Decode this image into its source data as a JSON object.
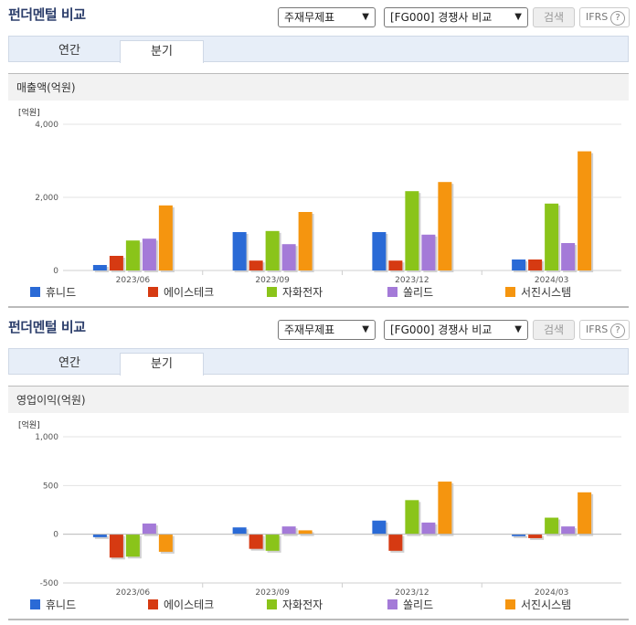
{
  "panels": [
    {
      "title": "펀더멘털 비교",
      "select1": "주재무제표",
      "select2": "[FG000] 경쟁사 비교",
      "search_label": "검색",
      "ifrs_label": "IFRS",
      "tabs": [
        "연간",
        "분기"
      ],
      "active_tab": "분기",
      "section_title": "매출액(억원)"
    },
    {
      "title": "펀더멘털 비교",
      "select1": "주재무제표",
      "select2": "[FG000] 경쟁사 비교",
      "search_label": "검색",
      "ifrs_label": "IFRS",
      "tabs": [
        "연간",
        "분기"
      ],
      "active_tab": "분기",
      "section_title": "영업이익(억원)"
    }
  ],
  "colors": {
    "휴니드": "#2a6ad6",
    "에이스테크": "#d63a12",
    "자화전자": "#8ac41a",
    "쏠리드": "#a47ad8",
    "서진시스템": "#f5950f"
  },
  "chart_data": [
    {
      "type": "bar",
      "unit_label": "[억원]",
      "categories": [
        "2023/06",
        "2023/09",
        "2023/12",
        "2024/03"
      ],
      "ylim": [
        0,
        4000
      ],
      "yticks": [
        0,
        2000,
        4000
      ],
      "ytick_labels": [
        "0",
        "2,000",
        "4,000"
      ],
      "series": [
        {
          "name": "휴니드",
          "values": [
            150,
            1050,
            1050,
            300
          ]
        },
        {
          "name": "에이스테크",
          "values": [
            400,
            270,
            270,
            300
          ]
        },
        {
          "name": "자화전자",
          "values": [
            820,
            1080,
            2170,
            1830
          ]
        },
        {
          "name": "쏠리드",
          "values": [
            870,
            720,
            980,
            750
          ]
        },
        {
          "name": "서진시스템",
          "values": [
            1780,
            1600,
            2420,
            3260
          ]
        }
      ],
      "legend": "bottom"
    },
    {
      "type": "bar",
      "unit_label": "[억원]",
      "categories": [
        "2023/06",
        "2023/09",
        "2023/12",
        "2024/03"
      ],
      "ylim": [
        -500,
        1000
      ],
      "yticks": [
        -500,
        0,
        500,
        1000
      ],
      "ytick_labels": [
        "-500",
        "0",
        "500",
        "1,000"
      ],
      "series": [
        {
          "name": "휴니드",
          "values": [
            -30,
            70,
            140,
            -20
          ]
        },
        {
          "name": "에이스테크",
          "values": [
            -240,
            -150,
            -170,
            -40
          ]
        },
        {
          "name": "자화전자",
          "values": [
            -230,
            -170,
            350,
            170
          ]
        },
        {
          "name": "쏠리드",
          "values": [
            110,
            80,
            120,
            80
          ]
        },
        {
          "name": "서진시스템",
          "values": [
            -180,
            40,
            540,
            430
          ]
        }
      ],
      "legend": "bottom"
    }
  ]
}
